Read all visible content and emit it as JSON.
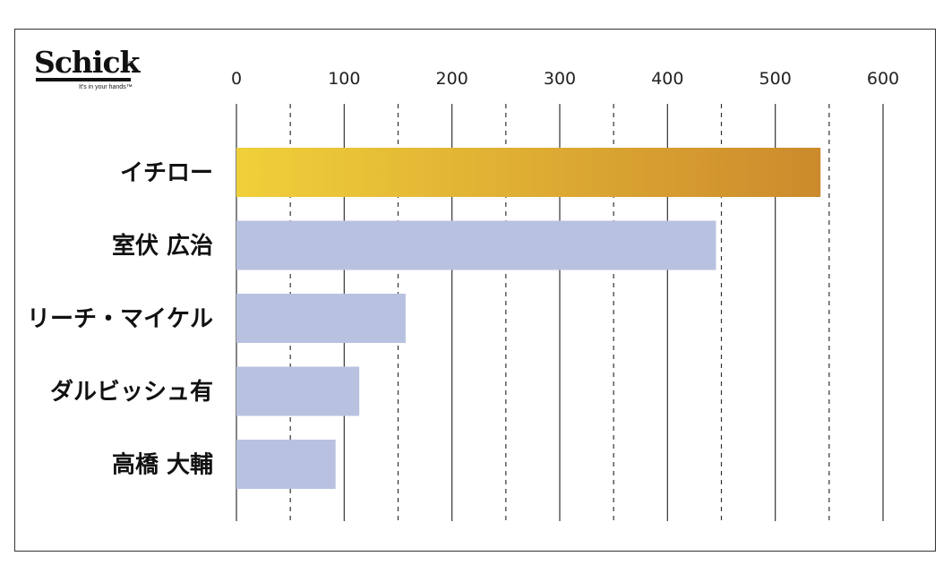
{
  "logo": {
    "wordmark": "Schick",
    "registered": "®",
    "tagline": "It's in your hands™"
  },
  "chart_data": {
    "type": "bar",
    "orientation": "horizontal",
    "categories": [
      "イチロー",
      "室伏 広治",
      "リーチ・マイケル",
      "ダルビッシュ有",
      "高橋 大輔"
    ],
    "values": [
      542,
      445,
      157,
      114,
      92
    ],
    "xlim": [
      0,
      600
    ],
    "xticks": [
      0,
      100,
      200,
      300,
      400,
      500,
      600
    ],
    "xtick_labels": [
      "0",
      "100",
      "200",
      "300",
      "400",
      "500",
      "600"
    ],
    "grid": {
      "major": "solid",
      "minor": "dashed",
      "minor_step": 50
    },
    "bar_colors": {
      "highlight_gradient": [
        "#f0d03a",
        "#cc8a2c"
      ],
      "default": "#b8c2e0"
    },
    "highlight_index": 0
  }
}
